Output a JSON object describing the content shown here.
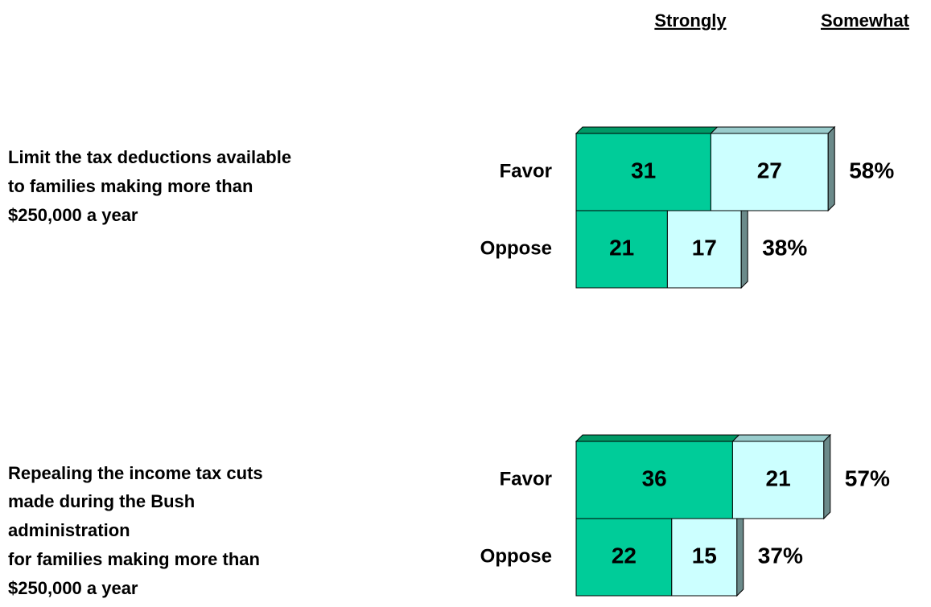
{
  "chart_data": {
    "type": "bar",
    "series": [
      {
        "name": "Strongly",
        "color": "#00cc99"
      },
      {
        "name": "Somewhat",
        "color": "#ccffff"
      }
    ],
    "groups": [
      {
        "title": [
          "Limit the tax deductions available",
          "to families making more than",
          "$250,000 a year"
        ],
        "categories": [
          "Favor",
          "Oppose"
        ],
        "series": [
          {
            "values": [
              31,
              21
            ]
          },
          {
            "values": [
              27,
              17
            ]
          }
        ],
        "totals": [
          58,
          38
        ],
        "total_labels": [
          "58%",
          "38%"
        ]
      },
      {
        "title": [
          "Repealing the income tax cuts",
          "made during the Bush",
          "administration",
          "for families making more than",
          "$250,000 a year"
        ],
        "categories": [
          "Favor",
          "Oppose"
        ],
        "series": [
          {
            "values": [
              36,
              22
            ]
          },
          {
            "values": [
              21,
              15
            ]
          }
        ],
        "totals": [
          57,
          37
        ],
        "total_labels": [
          "57%",
          "37%"
        ]
      }
    ]
  }
}
